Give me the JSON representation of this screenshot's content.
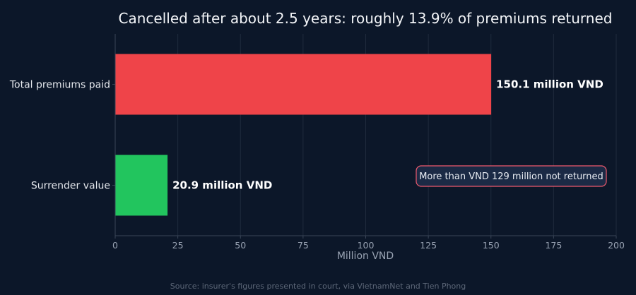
{
  "chart_data": {
    "type": "bar",
    "orientation": "horizontal",
    "title": "Cancelled after about 2.5 years: roughly 13.9% of premiums returned",
    "categories": [
      "Total premiums paid",
      "Surrender value"
    ],
    "values": [
      150.1,
      20.9
    ],
    "data_labels": [
      "150.1 million VND",
      "20.9 million VND"
    ],
    "colors": [
      "#ef4449",
      "#22c55e"
    ],
    "xlabel": "Million VND",
    "ylabel": "",
    "xlim": [
      0,
      200
    ],
    "xticks": [
      0,
      25,
      50,
      75,
      100,
      125,
      150,
      175,
      200
    ],
    "grid": "vertical",
    "annotation": "More than VND 129 million not returned",
    "source": "Source: insurer's figures presented in court, via VietnamNet and Tien Phong"
  }
}
